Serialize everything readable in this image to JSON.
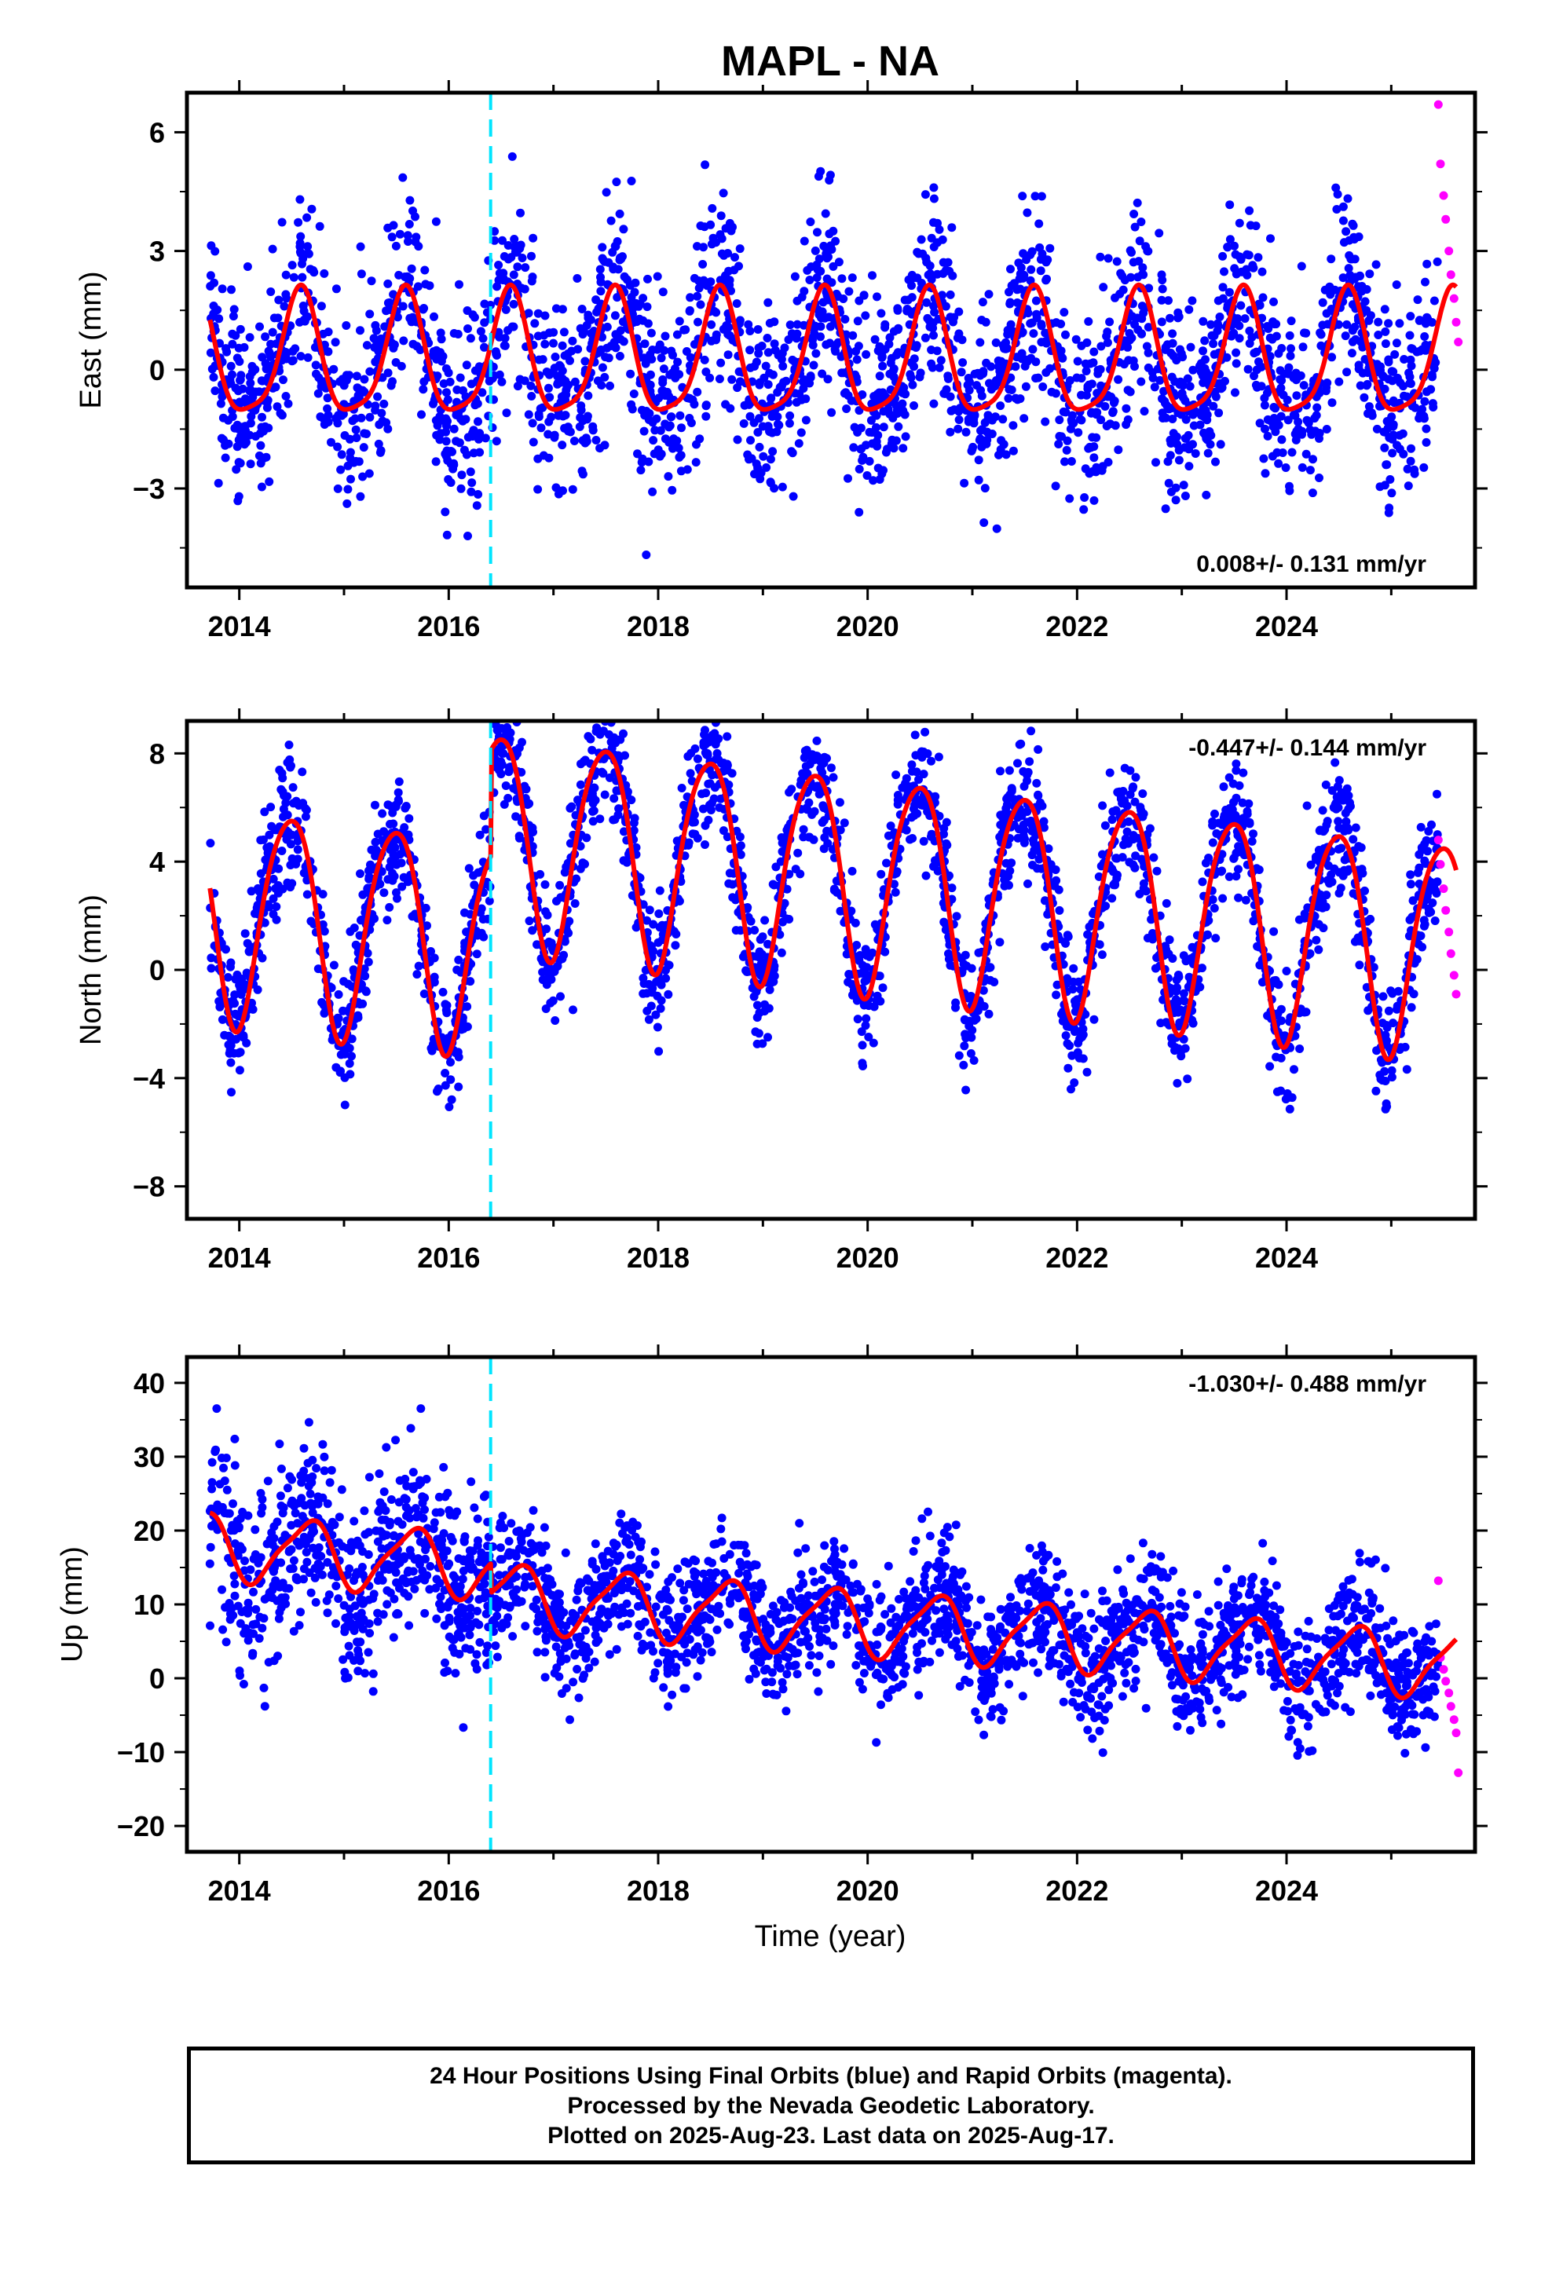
{
  "title": "MAPL - NA",
  "xlabel": "Time (year)",
  "footer": {
    "line1": "24 Hour Positions Using Final Orbits (blue) and Rapid Orbits (magenta).",
    "line2": "Processed by the Nevada Geodetic Laboratory.",
    "line3": "Plotted on 2025-Aug-23. Last data on 2025-Aug-17."
  },
  "colors": {
    "final_orbits": "#0000ff",
    "rapid_orbits": "#ff00ff",
    "model_fit": "#ff0000",
    "event_line": "#00e5ff",
    "frame": "#000000"
  },
  "chart_data": [
    {
      "type": "scatter",
      "panel": "east",
      "ylabel": "East (mm)",
      "rate_label": "0.008+/- 0.131 mm/yr",
      "xlim": [
        2013.5,
        2025.8
      ],
      "ylim": [
        -5.5,
        7
      ],
      "xticks": [
        "2014",
        "2016",
        "2018",
        "2020",
        "2022",
        "2024"
      ],
      "yticks": [
        "−3",
        "0",
        "3",
        "6"
      ],
      "event_line_x": 2016.4,
      "fit": {
        "name": "model",
        "offset": 0.25,
        "annual_amp": 1.55,
        "annual_phase": 0.58,
        "semiannual_amp": 0.35,
        "semiannual_phase": 0.1,
        "step": 0
      },
      "scatter_sd": 1.2,
      "rapid_points": [
        [
          2025.45,
          6.7
        ],
        [
          2025.47,
          5.2
        ],
        [
          2025.5,
          4.4
        ],
        [
          2025.52,
          3.8
        ],
        [
          2025.55,
          3.0
        ],
        [
          2025.57,
          2.4
        ],
        [
          2025.6,
          1.8
        ],
        [
          2025.62,
          1.2
        ],
        [
          2025.64,
          0.7
        ]
      ]
    },
    {
      "type": "scatter",
      "panel": "north",
      "ylabel": "North (mm)",
      "rate_label": "-0.447+/- 0.144 mm/yr",
      "xlim": [
        2013.5,
        2025.8
      ],
      "ylim": [
        -9.2,
        9.2
      ],
      "xticks": [
        "2014",
        "2016",
        "2018",
        "2020",
        "2022",
        "2024"
      ],
      "yticks": [
        "−8",
        "−4",
        "0",
        "4",
        "8"
      ],
      "event_line_x": 2016.4,
      "fit": {
        "name": "model",
        "offset": -0.3,
        "annual_amp": 4.0,
        "annual_phase": 0.48,
        "semiannual_amp": 0.5,
        "semiannual_phase": 0.2,
        "step": 3.9,
        "trend": -0.447
      },
      "scatter_sd": 1.15,
      "rapid_points": [
        [
          2025.45,
          4.8
        ],
        [
          2025.47,
          3.9
        ],
        [
          2025.5,
          3.0
        ],
        [
          2025.52,
          2.2
        ],
        [
          2025.55,
          1.4
        ],
        [
          2025.57,
          0.6
        ],
        [
          2025.6,
          -0.2
        ],
        [
          2025.62,
          -0.9
        ]
      ]
    },
    {
      "type": "scatter",
      "panel": "up",
      "ylabel": "Up (mm)",
      "rate_label": "-1.030+/- 0.488 mm/yr",
      "xlim": [
        2013.5,
        2025.8
      ],
      "ylim": [
        -23.5,
        43.5
      ],
      "xticks": [
        "2014",
        "2016",
        "2018",
        "2020",
        "2022",
        "2024"
      ],
      "yticks": [
        "−20",
        "−10",
        "0",
        "10",
        "20",
        "30",
        "40"
      ],
      "event_line_x": 2016.4,
      "fit": {
        "name": "model",
        "offset": 12.0,
        "annual_amp": 4.3,
        "annual_phase": 0.65,
        "semiannual_amp": 1.0,
        "semiannual_phase": 0.3,
        "step": -4.0,
        "trend": -1.03
      },
      "scatter_sd": 4.2,
      "rapid_points": [
        [
          2025.45,
          13.2
        ],
        [
          2025.47,
          2.8
        ],
        [
          2025.5,
          1.2
        ],
        [
          2025.52,
          -0.4
        ],
        [
          2025.55,
          -2.0
        ],
        [
          2025.57,
          -3.8
        ],
        [
          2025.6,
          -5.6
        ],
        [
          2025.62,
          -7.4
        ],
        [
          2025.64,
          -12.8
        ]
      ]
    }
  ]
}
